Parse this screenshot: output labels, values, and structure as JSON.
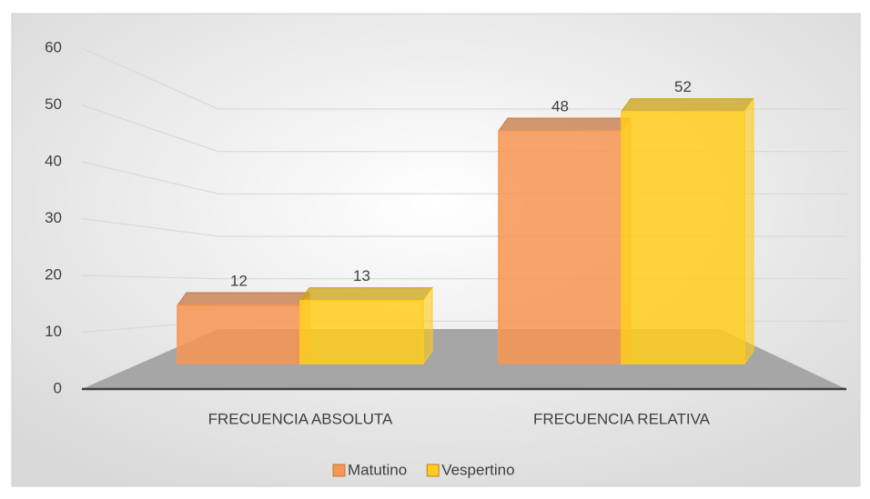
{
  "chart_data": {
    "type": "bar3d",
    "categories": [
      "FRECUENCIA ABSOLUTA",
      "FRECUENCIA RELATIVA"
    ],
    "series": [
      {
        "name": "Matutino",
        "color": "#f79552",
        "values": [
          12,
          48
        ]
      },
      {
        "name": "Vespertino",
        "color": "#ffcc1a",
        "values": [
          13,
          52
        ]
      }
    ],
    "ylim": [
      0,
      60
    ],
    "yticks": [
      0,
      10,
      20,
      30,
      40,
      50,
      60
    ],
    "grid": true,
    "legend": "bottom"
  }
}
